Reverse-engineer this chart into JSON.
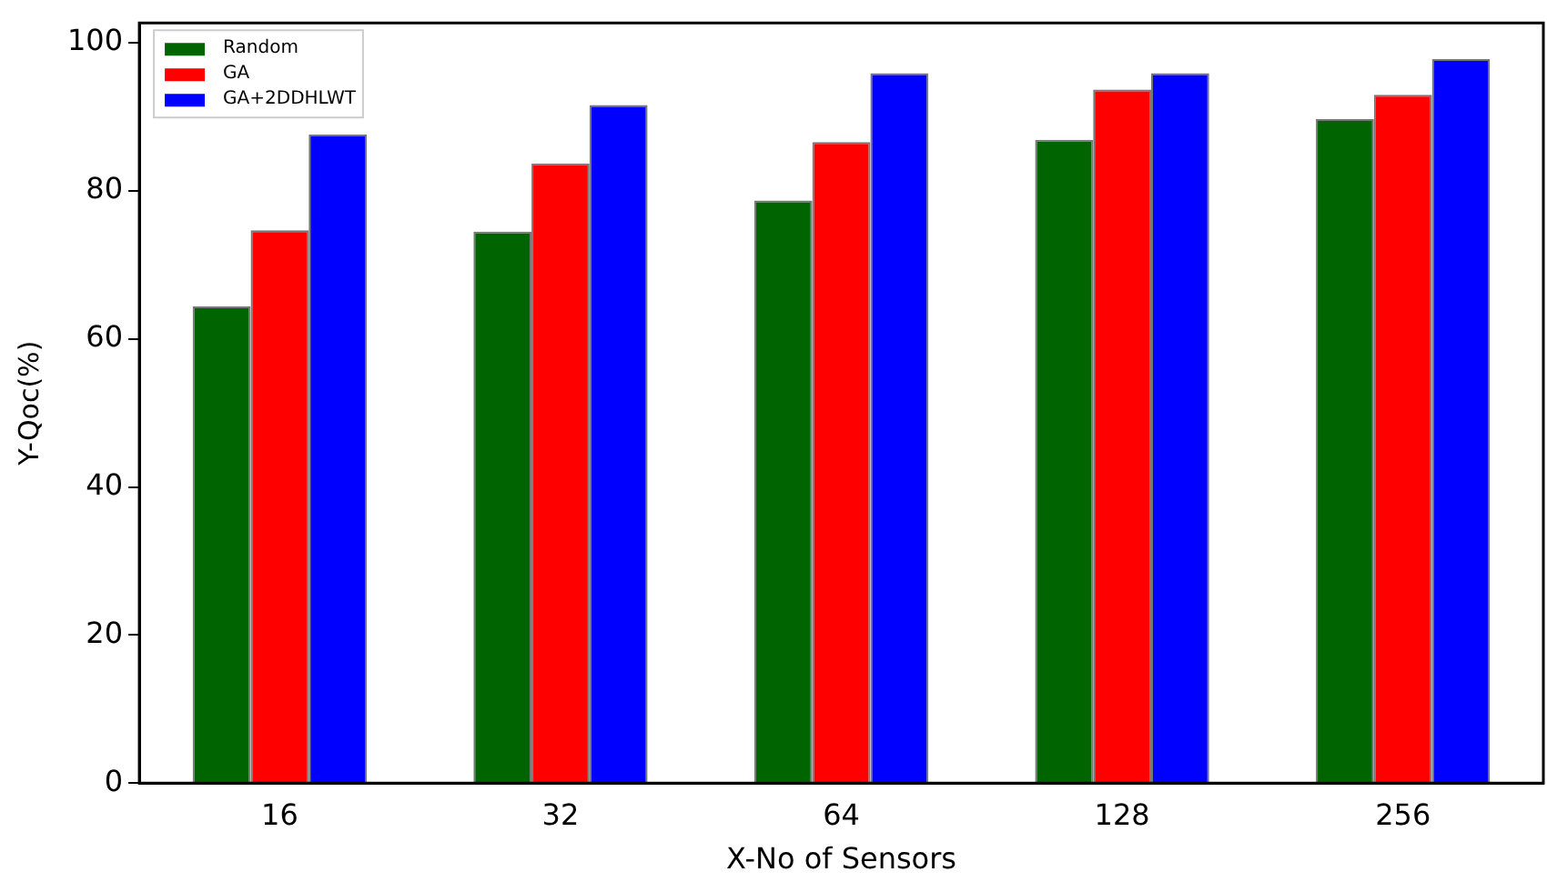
{
  "chart_data": {
    "type": "bar",
    "xlabel": "X-No of Sensors",
    "ylabel": "Y-Qoc(%)",
    "categories": [
      "16",
      "32",
      "64",
      "128",
      "256"
    ],
    "series": [
      {
        "name": "Random",
        "color": "#006400",
        "values": [
          64.4,
          74.5,
          78.7,
          86.9,
          89.7
        ]
      },
      {
        "name": "GA",
        "color": "#ff0000",
        "values": [
          74.7,
          83.7,
          86.6,
          93.7,
          93.0
        ]
      },
      {
        "name": "GA+2DDHLWT",
        "color": "#0000ff",
        "values": [
          87.6,
          91.6,
          95.9,
          95.9,
          97.8
        ]
      }
    ],
    "ylim": [
      0,
      102.7
    ],
    "yticks": [
      0,
      20,
      40,
      60,
      80,
      100
    ],
    "grid": false,
    "legend": "top left"
  }
}
